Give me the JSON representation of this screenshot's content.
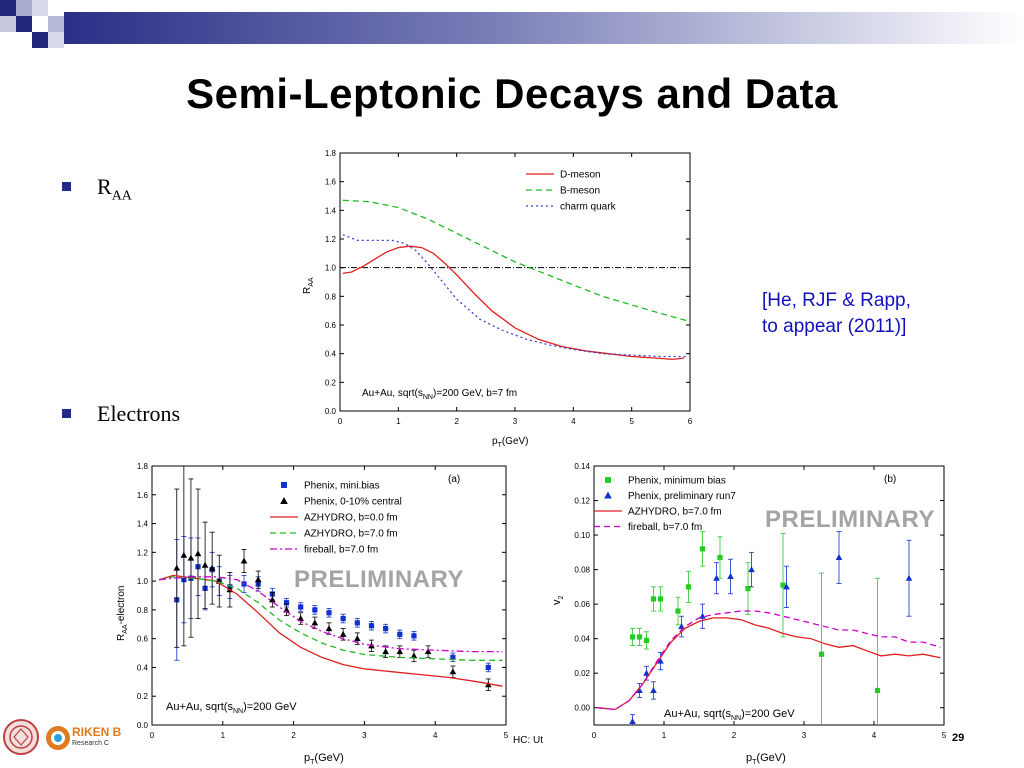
{
  "slide": {
    "title": "Semi-Leptonic Decays and Data",
    "bullets": [
      {
        "text": "R",
        "sub": "AA"
      },
      {
        "text": "Electrons"
      }
    ],
    "citation": [
      "[He, RJF & Rapp,",
      "to appear (2011)]"
    ],
    "preliminary": "PRELIMINARY",
    "footer_text": "HC: Ut",
    "page_number": "29",
    "logo_text": "RIKEN B",
    "logo_subtext": "Research C",
    "colors": {
      "title": "#000000",
      "bullet": "#1f2a8c",
      "citation": "#1111bb",
      "preliminary": "#a4a4a4",
      "deco_dark": "#22287a"
    }
  },
  "chart_data": [
    {
      "type": "line",
      "xlabel": "pT(GeV)",
      "ylabel": "RAA",
      "xlim": [
        0,
        6
      ],
      "ylim": [
        0,
        1.8
      ],
      "xticks": [
        0,
        1,
        2,
        3,
        4,
        5,
        6
      ],
      "yticks": [
        0.0,
        0.2,
        0.4,
        0.6,
        0.8,
        1.0,
        1.2,
        1.4,
        1.6,
        1.8
      ],
      "legend_position": "top-right",
      "annotation": "Au+Au, sqrt(sNN)=200 GeV, b=7 fm",
      "reference_line": 1.0,
      "series": [
        {
          "name": "D-meson",
          "color": "#e02020",
          "style": "solid",
          "x": [
            0.05,
            0.2,
            0.4,
            0.6,
            0.8,
            1.0,
            1.2,
            1.4,
            1.6,
            1.8,
            2.0,
            2.3,
            2.6,
            3.0,
            3.4,
            3.8,
            4.2,
            4.6,
            5.0,
            5.4,
            5.7,
            5.9
          ],
          "y": [
            0.96,
            0.97,
            1.01,
            1.06,
            1.11,
            1.14,
            1.15,
            1.14,
            1.1,
            1.03,
            0.95,
            0.82,
            0.7,
            0.58,
            0.5,
            0.45,
            0.42,
            0.4,
            0.38,
            0.37,
            0.36,
            0.37
          ]
        },
        {
          "name": "B-meson",
          "color": "#22bb22",
          "style": "dashed",
          "x": [
            0.05,
            0.5,
            1.0,
            1.5,
            2.0,
            2.5,
            3.0,
            3.5,
            4.0,
            4.5,
            5.0,
            5.5,
            5.95
          ],
          "y": [
            1.47,
            1.46,
            1.42,
            1.34,
            1.24,
            1.14,
            1.04,
            0.96,
            0.88,
            0.8,
            0.74,
            0.68,
            0.63
          ]
        },
        {
          "name": "charm quark",
          "color": "#3344cc",
          "style": "dotted",
          "x": [
            0.05,
            0.3,
            0.6,
            0.9,
            1.1,
            1.3,
            1.5,
            1.7,
            2.0,
            2.4,
            2.8,
            3.2,
            3.6,
            4.0,
            4.5,
            5.0,
            5.5,
            5.95
          ],
          "y": [
            1.23,
            1.19,
            1.19,
            1.19,
            1.17,
            1.12,
            1.03,
            0.93,
            0.78,
            0.64,
            0.56,
            0.5,
            0.46,
            0.43,
            0.4,
            0.39,
            0.38,
            0.38
          ]
        }
      ]
    },
    {
      "type": "scatter",
      "panel_label": "(a)",
      "xlabel": "pT(GeV)",
      "ylabel": "RAA-electron",
      "xlim": [
        0,
        5
      ],
      "ylim": [
        0,
        1.8
      ],
      "xticks": [
        0,
        1,
        2,
        3,
        4,
        5
      ],
      "yticks": [
        0.0,
        0.2,
        0.4,
        0.6,
        0.8,
        1.0,
        1.2,
        1.4,
        1.6,
        1.8
      ],
      "legend_position": "top-right",
      "annotation": "Au+Au, sqrt(sNN)=200 GeV",
      "series": [
        {
          "name": "Phenix, mini.bias",
          "kind": "points",
          "marker": "square",
          "color": "#1030d0",
          "x": [
            0.35,
            0.45,
            0.55,
            0.65,
            0.75,
            0.85,
            0.95,
            1.1,
            1.3,
            1.5,
            1.7,
            1.9,
            2.1,
            2.3,
            2.5,
            2.7,
            2.9,
            3.1,
            3.3,
            3.5,
            3.7,
            4.25,
            4.75
          ],
          "y": [
            0.87,
            1.01,
            1.02,
            1.1,
            0.95,
            1.08,
            1.0,
            0.96,
            0.98,
            0.98,
            0.91,
            0.85,
            0.82,
            0.8,
            0.78,
            0.74,
            0.71,
            0.69,
            0.67,
            0.63,
            0.62,
            0.47,
            0.4
          ],
          "err": [
            0.42,
            0.3,
            0.28,
            0.2,
            0.15,
            0.12,
            0.1,
            0.08,
            0.06,
            0.05,
            0.04,
            0.03,
            0.03,
            0.03,
            0.03,
            0.03,
            0.03,
            0.03,
            0.03,
            0.03,
            0.03,
            0.03,
            0.03
          ]
        },
        {
          "name": "Phenix, 0-10% central",
          "kind": "points",
          "marker": "triangle",
          "color": "#000000",
          "x": [
            0.35,
            0.45,
            0.55,
            0.65,
            0.75,
            0.85,
            0.95,
            1.1,
            1.3,
            1.5,
            1.7,
            1.9,
            2.1,
            2.3,
            2.5,
            2.7,
            2.9,
            3.1,
            3.3,
            3.5,
            3.7,
            3.9,
            4.25,
            4.75
          ],
          "y": [
            1.09,
            1.18,
            1.16,
            1.19,
            1.11,
            1.09,
            1.0,
            0.94,
            1.14,
            1.01,
            0.87,
            0.8,
            0.74,
            0.71,
            0.67,
            0.63,
            0.6,
            0.55,
            0.51,
            0.51,
            0.48,
            0.51,
            0.37,
            0.28
          ],
          "err": [
            0.55,
            0.63,
            0.55,
            0.45,
            0.3,
            0.25,
            0.18,
            0.12,
            0.08,
            0.06,
            0.05,
            0.04,
            0.04,
            0.04,
            0.04,
            0.04,
            0.04,
            0.04,
            0.04,
            0.04,
            0.04,
            0.04,
            0.04,
            0.04
          ]
        },
        {
          "name": "AZHYDRO, b=0.0 fm",
          "kind": "line",
          "style": "solid",
          "color": "#e02020",
          "x": [
            0.1,
            0.3,
            0.6,
            0.9,
            1.2,
            1.5,
            1.8,
            2.1,
            2.4,
            2.7,
            3.0,
            3.4,
            3.8,
            4.2,
            4.6,
            4.95
          ],
          "y": [
            1.01,
            1.04,
            1.02,
            1.0,
            0.91,
            0.78,
            0.64,
            0.54,
            0.47,
            0.42,
            0.39,
            0.37,
            0.35,
            0.33,
            0.3,
            0.27
          ]
        },
        {
          "name": "AZHYDRO, b=7.0 fm",
          "kind": "line",
          "style": "dashed",
          "color": "#22bb22",
          "x": [
            0.1,
            0.3,
            0.6,
            0.9,
            1.2,
            1.5,
            1.8,
            2.1,
            2.4,
            2.7,
            3.0,
            3.5,
            4.0,
            4.5,
            4.95
          ],
          "y": [
            1.01,
            1.03,
            1.02,
            1.0,
            0.95,
            0.85,
            0.73,
            0.64,
            0.57,
            0.52,
            0.49,
            0.47,
            0.46,
            0.45,
            0.45
          ]
        },
        {
          "name": "fireball, b=7.0 fm",
          "kind": "line",
          "style": "dashdot",
          "color": "#cc00cc",
          "x": [
            0.1,
            0.3,
            0.6,
            0.9,
            1.2,
            1.5,
            1.8,
            2.1,
            2.4,
            2.7,
            3.0,
            3.5,
            4.0,
            4.5,
            4.95
          ],
          "y": [
            1.01,
            1.02,
            1.03,
            1.03,
            1.01,
            0.93,
            0.82,
            0.72,
            0.65,
            0.6,
            0.56,
            0.53,
            0.52,
            0.51,
            0.51
          ]
        }
      ]
    },
    {
      "type": "scatter",
      "panel_label": "(b)",
      "xlabel": "pT(GeV)",
      "ylabel": "v2",
      "xlim": [
        0,
        5
      ],
      "ylim": [
        -0.01,
        0.14
      ],
      "xticks": [
        0,
        1,
        2,
        3,
        4,
        5
      ],
      "yticks": [
        0.0,
        0.02,
        0.04,
        0.06,
        0.08,
        0.1,
        0.12,
        0.14
      ],
      "legend_position": "top-left",
      "annotation": "Au+Au, sqrt(sNN)=200 GeV",
      "series": [
        {
          "name": "Phenix, minimum bias",
          "kind": "points",
          "marker": "square",
          "color": "#22cc22",
          "x": [
            0.55,
            0.65,
            0.75,
            0.85,
            0.95,
            1.2,
            1.35,
            1.55,
            1.8,
            2.2,
            2.7,
            3.25,
            4.05
          ],
          "y": [
            0.041,
            0.041,
            0.039,
            0.063,
            0.063,
            0.056,
            0.07,
            0.092,
            0.087,
            0.069,
            0.071,
            0.031,
            0.01
          ],
          "err": [
            0.005,
            0.005,
            0.005,
            0.007,
            0.007,
            0.008,
            0.009,
            0.01,
            0.012,
            0.015,
            0.03,
            0.047,
            0.065
          ]
        },
        {
          "name": "Phenix, preliminary run7",
          "kind": "points",
          "marker": "triangle",
          "color": "#1030d0",
          "x": [
            0.55,
            0.65,
            0.75,
            0.85,
            0.95,
            1.25,
            1.55,
            1.75,
            1.95,
            2.25,
            2.75,
            3.5,
            4.5
          ],
          "y": [
            -0.008,
            0.01,
            0.02,
            0.01,
            0.027,
            0.047,
            0.053,
            0.075,
            0.076,
            0.08,
            0.07,
            0.087,
            0.075
          ],
          "err": [
            0.004,
            0.004,
            0.004,
            0.005,
            0.005,
            0.006,
            0.007,
            0.009,
            0.01,
            0.01,
            0.012,
            0.015,
            0.022
          ]
        },
        {
          "name": "AZHYDRO, b=7.0 fm",
          "kind": "line",
          "style": "solid",
          "color": "#e02020",
          "x": [
            0.05,
            0.3,
            0.5,
            0.7,
            0.9,
            1.1,
            1.3,
            1.5,
            1.7,
            1.9,
            2.1,
            2.3,
            2.5,
            2.7,
            2.9,
            3.1,
            3.3,
            3.5,
            3.7,
            3.9,
            4.1,
            4.3,
            4.5,
            4.7,
            4.95
          ],
          "y": [
            0.0,
            -0.001,
            0.004,
            0.014,
            0.026,
            0.038,
            0.046,
            0.05,
            0.052,
            0.052,
            0.051,
            0.048,
            0.046,
            0.043,
            0.041,
            0.04,
            0.037,
            0.035,
            0.036,
            0.033,
            0.03,
            0.031,
            0.03,
            0.031,
            0.029
          ]
        },
        {
          "name": "fireball, b=7.0 fm",
          "kind": "line",
          "style": "dashed",
          "color": "#cc00cc",
          "x": [
            0.05,
            0.3,
            0.5,
            0.7,
            0.9,
            1.1,
            1.3,
            1.5,
            1.7,
            1.9,
            2.1,
            2.3,
            2.5,
            2.7,
            2.9,
            3.1,
            3.3,
            3.5,
            3.7,
            3.9,
            4.1,
            4.3,
            4.5,
            4.7,
            4.95
          ],
          "y": [
            0.0,
            -0.001,
            0.004,
            0.014,
            0.027,
            0.039,
            0.047,
            0.052,
            0.054,
            0.055,
            0.056,
            0.056,
            0.055,
            0.053,
            0.051,
            0.049,
            0.047,
            0.045,
            0.045,
            0.043,
            0.041,
            0.041,
            0.038,
            0.038,
            0.035
          ]
        }
      ]
    }
  ]
}
